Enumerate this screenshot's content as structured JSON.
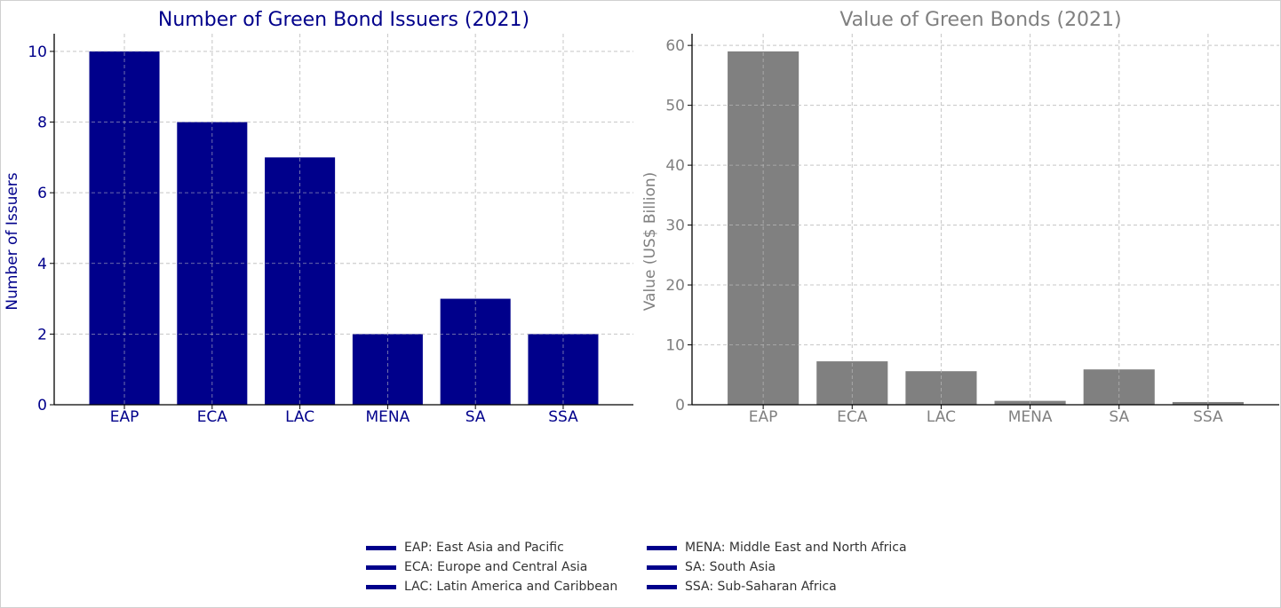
{
  "chart_data": [
    {
      "type": "bar",
      "title": "Number of Green Bond Issuers (2021)",
      "xlabel": "",
      "ylabel": "Number of Issuers",
      "categories": [
        "EAP",
        "ECA",
        "LAC",
        "MENA",
        "SA",
        "SSA"
      ],
      "values": [
        10,
        8,
        7,
        2,
        3,
        2
      ],
      "ylim": [
        0,
        10.5
      ],
      "yticks": [
        0,
        2,
        4,
        6,
        8,
        10
      ],
      "grid": true,
      "color": "#00008b",
      "text_color": "#00008b"
    },
    {
      "type": "bar",
      "title": "Value of Green Bonds (2021)",
      "xlabel": "",
      "ylabel": "Value (US$ Billion)",
      "categories": [
        "EAP",
        "ECA",
        "LAC",
        "MENA",
        "SA",
        "SSA"
      ],
      "values": [
        59,
        7.25,
        5.6,
        0.65,
        5.9,
        0.45
      ],
      "ylim": [
        0,
        61.95
      ],
      "yticks": [
        0,
        10,
        20,
        30,
        40,
        50,
        60
      ],
      "grid": true,
      "color": "#808080",
      "text_color": "#808080"
    }
  ],
  "legend": {
    "placement": "bottom-center",
    "color": "#00008b",
    "items": [
      "EAP: East Asia and Pacific",
      "ECA: Europe and Central Asia",
      "LAC: Latin America and Caribbean",
      "MENA: Middle East and North Africa",
      "SA: South Asia",
      "SSA: Sub-Saharan Africa"
    ]
  }
}
